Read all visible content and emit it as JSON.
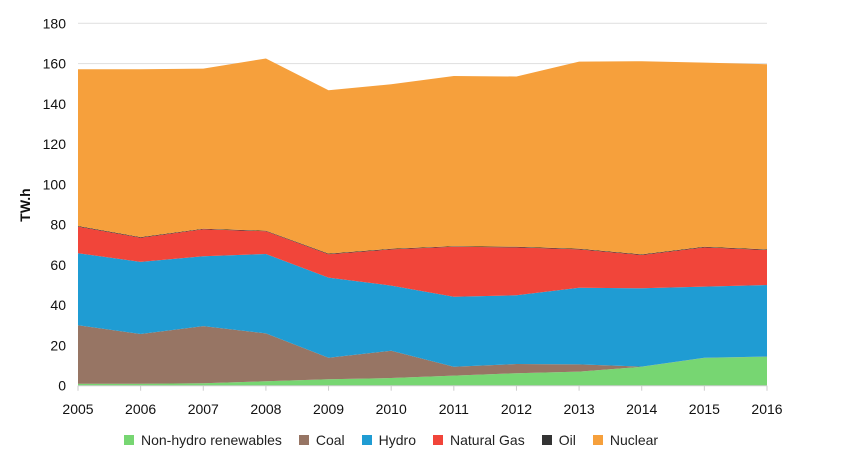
{
  "chart_data": {
    "type": "area",
    "stacked": true,
    "title": "",
    "xlabel": "",
    "ylabel": "TW.h",
    "ylim": [
      0,
      180
    ],
    "yticks": [
      0,
      20,
      40,
      60,
      80,
      100,
      120,
      140,
      160,
      180
    ],
    "grid": true,
    "legend_position": "bottom",
    "x": [
      "2005",
      "2006",
      "2007",
      "2008",
      "2009",
      "2010",
      "2011",
      "2012",
      "2013",
      "2014",
      "2015",
      "2016"
    ],
    "series": [
      {
        "name": "Non-hydro renewables",
        "color": "#77d672",
        "values": [
          1,
          1,
          1.2,
          2.2,
          3.2,
          3.8,
          5,
          6.2,
          7,
          9.4,
          13.8,
          14.4
        ]
      },
      {
        "name": "Coal",
        "color": "#977564",
        "values": [
          29,
          24.7,
          28.4,
          23.8,
          10.7,
          13.6,
          4.4,
          4.6,
          3.6,
          0.1,
          0.1,
          0.1
        ]
      },
      {
        "name": "Hydro",
        "color": "#1f9cd3",
        "values": [
          35.8,
          35.8,
          34.7,
          39.4,
          39.8,
          32.3,
          34.8,
          34.1,
          38.1,
          38.9,
          35.3,
          35.5
        ]
      },
      {
        "name": "Natural Gas",
        "color": "#f1453a",
        "values": [
          13.2,
          12,
          13.4,
          11.3,
          11.6,
          18,
          24.8,
          23.8,
          19,
          16.5,
          19.5,
          17.4
        ]
      },
      {
        "name": "Oil",
        "color": "#333333",
        "values": [
          0.3,
          0.3,
          0.3,
          0.3,
          0.3,
          0.3,
          0.3,
          0.3,
          0.3,
          0.3,
          0.3,
          0.3
        ]
      },
      {
        "name": "Nuclear",
        "color": "#f6a03c",
        "values": [
          77.9,
          83.4,
          79.5,
          85.5,
          81.1,
          81.7,
          84.5,
          84.6,
          93,
          96,
          91.5,
          92
        ]
      }
    ]
  }
}
